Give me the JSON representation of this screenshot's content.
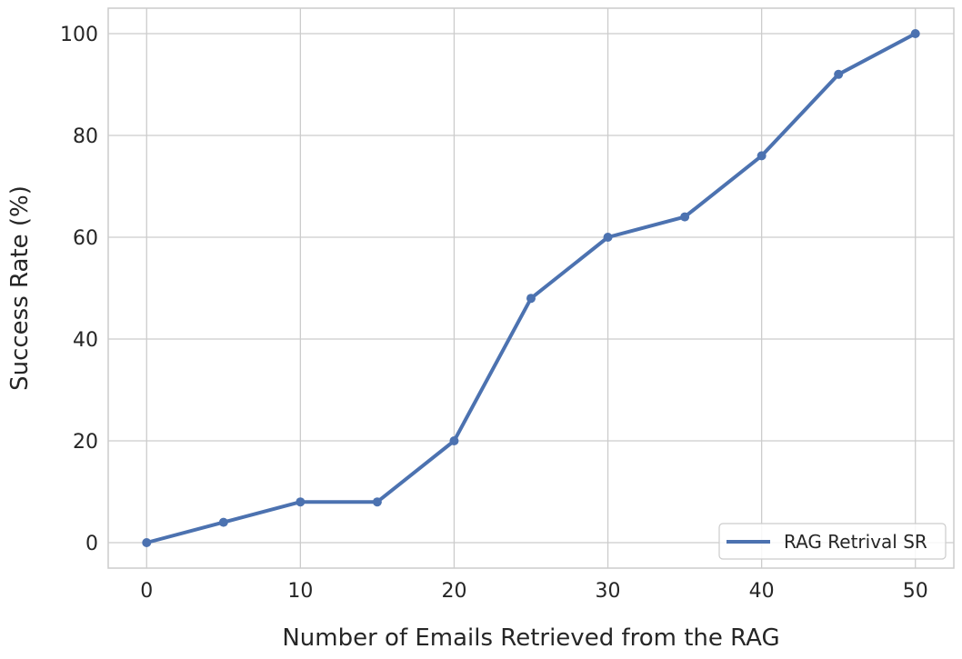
{
  "chart_data": {
    "type": "line",
    "title": "",
    "xlabel": "Number of Emails Retrieved from the RAG",
    "ylabel": "Success Rate (%)",
    "xlim": [
      -2.5,
      52.5
    ],
    "ylim": [
      -5,
      105
    ],
    "xticks": [
      0,
      10,
      20,
      30,
      40,
      50
    ],
    "yticks": [
      0,
      20,
      40,
      60,
      80,
      100
    ],
    "grid": true,
    "legend_position": "lower-right",
    "series": [
      {
        "name": "RAG Retrival SR",
        "color": "#4c72b0",
        "x": [
          0,
          5,
          10,
          15,
          20,
          25,
          30,
          35,
          40,
          45,
          50
        ],
        "y": [
          0,
          4,
          8,
          8,
          20,
          48,
          60,
          64,
          76,
          92,
          100
        ]
      }
    ]
  }
}
